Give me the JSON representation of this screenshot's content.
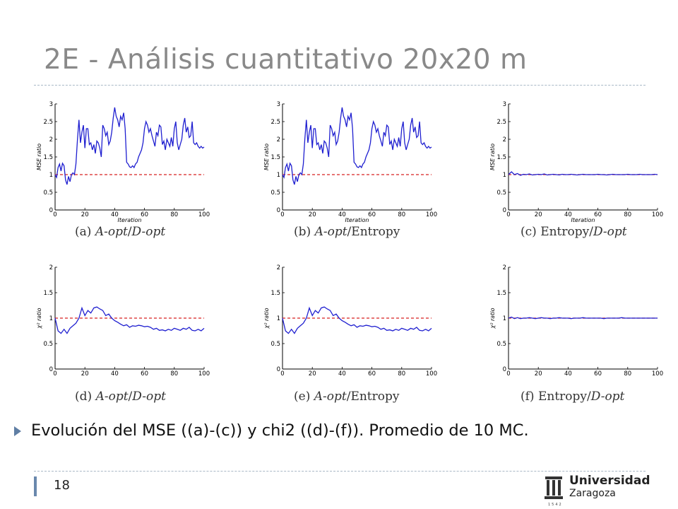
{
  "slide": {
    "title": "2E - Análisis cuantitativo 20x20 m",
    "bullet": "Evolución del MSE ((a)-(c)) y chi2 ((d)-(f)). Promedio de 10 MC.",
    "page_number": "18",
    "logo": {
      "line1": "Universidad",
      "line2": "Zaragoza",
      "year": "1542"
    }
  },
  "colors": {
    "series": "#1f1fd0",
    "reference": "#d62020",
    "title": "#898989",
    "bullet": "#5f7ea4"
  },
  "chart_data": [
    {
      "type": "line",
      "panel": "a",
      "caption": {
        "label": "(a)",
        "part1": "A-opt",
        "sep": "/",
        "part2": "D-opt",
        "italic1": true,
        "italic2": true
      },
      "xlabel": "Iteration",
      "ylabel": "MSE ratio",
      "xlim": [
        0,
        100
      ],
      "ylim": [
        0,
        3
      ],
      "xticks": [
        "0",
        "20",
        "40",
        "60",
        "80",
        "100"
      ],
      "yticks": [
        "0",
        "0.5",
        "1",
        "1.5",
        "2",
        "2.5",
        "3"
      ],
      "reference": 1,
      "series": [
        {
          "x": [
            0,
            1,
            2,
            3,
            4,
            5,
            6,
            7,
            8,
            9,
            10,
            11,
            12,
            13,
            14,
            15,
            16,
            17,
            18,
            19,
            20,
            21,
            22,
            23,
            24,
            25,
            26,
            27,
            28,
            29,
            30,
            31,
            32,
            33,
            34,
            35,
            36,
            37,
            38,
            39,
            40,
            41,
            42,
            43,
            44,
            45,
            46,
            47,
            48,
            49,
            50,
            51,
            52,
            53,
            54,
            55,
            56,
            57,
            58,
            59,
            60,
            61,
            62,
            63,
            64,
            65,
            66,
            67,
            68,
            69,
            70,
            71,
            72,
            73,
            74,
            75,
            76,
            77,
            78,
            79,
            80,
            81,
            82,
            83,
            84,
            85,
            86,
            87,
            88,
            89,
            90,
            91,
            92,
            93,
            94,
            95,
            96,
            97,
            98,
            99,
            100
          ],
          "y": [
            1.0,
            0.92,
            1.2,
            1.3,
            1.1,
            1.32,
            1.25,
            0.85,
            0.72,
            0.95,
            0.8,
            1.0,
            1.05,
            1.0,
            1.3,
            2.0,
            2.55,
            1.9,
            2.2,
            2.4,
            1.75,
            2.3,
            2.3,
            1.85,
            1.9,
            1.7,
            1.85,
            1.6,
            1.95,
            1.9,
            1.75,
            1.5,
            2.4,
            2.3,
            2.1,
            2.2,
            1.85,
            1.95,
            2.2,
            2.6,
            2.9,
            2.65,
            2.55,
            2.35,
            2.65,
            2.55,
            2.75,
            2.3,
            1.35,
            1.3,
            1.22,
            1.2,
            1.25,
            1.2,
            1.3,
            1.35,
            1.5,
            1.6,
            1.7,
            1.9,
            2.3,
            2.5,
            2.4,
            2.2,
            2.3,
            2.1,
            1.95,
            1.8,
            2.2,
            2.1,
            2.4,
            2.35,
            1.85,
            1.95,
            1.7,
            2.0,
            1.9,
            1.8,
            2.05,
            1.8,
            2.3,
            2.5,
            1.9,
            1.7,
            1.85,
            2.0,
            2.4,
            2.6,
            2.2,
            2.35,
            2.05,
            2.1,
            2.5,
            1.9,
            1.85,
            1.9,
            1.8,
            1.75,
            1.8,
            1.75,
            1.78
          ]
        }
      ]
    },
    {
      "type": "line",
      "panel": "b",
      "caption": {
        "label": "(b)",
        "part1": "A-opt",
        "sep": "/",
        "part2": "Entropy",
        "italic1": true,
        "italic2": false
      },
      "xlabel": "Iteration",
      "ylabel": "MSE ratio",
      "xlim": [
        0,
        100
      ],
      "ylim": [
        0,
        3
      ],
      "xticks": [
        "0",
        "20",
        "40",
        "60",
        "80",
        "100"
      ],
      "yticks": [
        "0",
        "0.5",
        "1",
        "1.5",
        "2",
        "2.5",
        "3"
      ],
      "reference": 1,
      "series": [
        {
          "x": [
            0,
            1,
            2,
            3,
            4,
            5,
            6,
            7,
            8,
            9,
            10,
            11,
            12,
            13,
            14,
            15,
            16,
            17,
            18,
            19,
            20,
            21,
            22,
            23,
            24,
            25,
            26,
            27,
            28,
            29,
            30,
            31,
            32,
            33,
            34,
            35,
            36,
            37,
            38,
            39,
            40,
            41,
            42,
            43,
            44,
            45,
            46,
            47,
            48,
            49,
            50,
            51,
            52,
            53,
            54,
            55,
            56,
            57,
            58,
            59,
            60,
            61,
            62,
            63,
            64,
            65,
            66,
            67,
            68,
            69,
            70,
            71,
            72,
            73,
            74,
            75,
            76,
            77,
            78,
            79,
            80,
            81,
            82,
            83,
            84,
            85,
            86,
            87,
            88,
            89,
            90,
            91,
            92,
            93,
            94,
            95,
            96,
            97,
            98,
            99,
            100
          ],
          "y": [
            1.0,
            0.92,
            1.2,
            1.3,
            1.1,
            1.32,
            1.25,
            0.85,
            0.72,
            0.95,
            0.8,
            1.0,
            1.05,
            1.0,
            1.3,
            2.0,
            2.55,
            1.9,
            2.2,
            2.4,
            1.75,
            2.3,
            2.3,
            1.85,
            1.9,
            1.7,
            1.85,
            1.6,
            1.95,
            1.9,
            1.75,
            1.5,
            2.4,
            2.3,
            2.1,
            2.2,
            1.85,
            1.95,
            2.2,
            2.6,
            2.9,
            2.65,
            2.55,
            2.35,
            2.65,
            2.55,
            2.75,
            2.3,
            1.35,
            1.3,
            1.22,
            1.2,
            1.25,
            1.2,
            1.3,
            1.35,
            1.5,
            1.6,
            1.7,
            1.9,
            2.3,
            2.5,
            2.4,
            2.2,
            2.3,
            2.1,
            1.95,
            1.8,
            2.2,
            2.1,
            2.4,
            2.35,
            1.85,
            1.95,
            1.7,
            2.0,
            1.9,
            1.8,
            2.05,
            1.8,
            2.3,
            2.5,
            1.9,
            1.7,
            1.85,
            2.0,
            2.4,
            2.6,
            2.2,
            2.35,
            2.05,
            2.1,
            2.5,
            1.9,
            1.85,
            1.9,
            1.8,
            1.75,
            1.8,
            1.75,
            1.78
          ]
        }
      ]
    },
    {
      "type": "line",
      "panel": "c",
      "caption": {
        "label": "(c)",
        "part1": "Entropy",
        "sep": "/",
        "part2": "D-opt",
        "italic1": false,
        "italic2": true
      },
      "xlabel": "Iteration",
      "ylabel": "MSE ratio",
      "xlim": [
        0,
        100
      ],
      "ylim": [
        0,
        3
      ],
      "xticks": [
        "0",
        "20",
        "40",
        "60",
        "80",
        "100"
      ],
      "yticks": [
        "0",
        "0.5",
        "1",
        "1.5",
        "2",
        "2.5",
        "3"
      ],
      "reference": 1,
      "series": [
        {
          "x": [
            0,
            2,
            4,
            6,
            8,
            10,
            12,
            14,
            16,
            18,
            20,
            22,
            24,
            26,
            28,
            30,
            32,
            34,
            36,
            38,
            40,
            42,
            44,
            46,
            48,
            50,
            52,
            54,
            56,
            58,
            60,
            62,
            64,
            66,
            68,
            70,
            72,
            74,
            76,
            78,
            80,
            82,
            84,
            86,
            88,
            90,
            92,
            94,
            96,
            98,
            100
          ],
          "y": [
            1.0,
            1.08,
            1.0,
            1.03,
            0.98,
            1.01,
            1.0,
            1.02,
            0.99,
            1.0,
            1.01,
            1.0,
            1.02,
            0.99,
            1.0,
            1.01,
            1.0,
            0.99,
            1.01,
            1.0,
            1.0,
            1.01,
            1.0,
            0.99,
            1.0,
            1.01,
            1.0,
            1.0,
            1.0,
            1.0,
            1.01,
            1.0,
            1.0,
            0.99,
            1.0,
            1.01,
            1.0,
            1.0,
            1.0,
            1.0,
            1.01,
            1.0,
            1.0,
            1.0,
            1.01,
            1.0,
            1.0,
            1.0,
            1.0,
            1.01,
            1.0
          ]
        }
      ]
    },
    {
      "type": "line",
      "panel": "d",
      "caption": {
        "label": "(d)",
        "part1": "A-opt",
        "sep": "/",
        "part2": "D-opt",
        "italic1": true,
        "italic2": true
      },
      "xlabel": "",
      "ylabel": "χ² ratio",
      "xlim": [
        0,
        100
      ],
      "ylim": [
        0,
        2
      ],
      "xticks": [
        "0",
        "20",
        "40",
        "60",
        "80",
        "100"
      ],
      "yticks": [
        "0",
        "0.5",
        "1",
        "1.5",
        "2"
      ],
      "reference": 1,
      "series": [
        {
          "x": [
            0,
            2,
            4,
            6,
            8,
            10,
            12,
            14,
            16,
            18,
            20,
            22,
            24,
            26,
            28,
            30,
            32,
            34,
            36,
            38,
            40,
            42,
            44,
            46,
            48,
            50,
            52,
            54,
            56,
            58,
            60,
            62,
            64,
            66,
            68,
            70,
            72,
            74,
            76,
            78,
            80,
            82,
            84,
            86,
            88,
            90,
            92,
            94,
            96,
            98,
            100
          ],
          "y": [
            1.0,
            0.75,
            0.7,
            0.78,
            0.7,
            0.8,
            0.85,
            0.9,
            1.0,
            1.2,
            1.05,
            1.15,
            1.1,
            1.2,
            1.22,
            1.18,
            1.15,
            1.05,
            1.08,
            1.0,
            0.95,
            0.92,
            0.88,
            0.85,
            0.87,
            0.82,
            0.85,
            0.84,
            0.86,
            0.85,
            0.83,
            0.84,
            0.82,
            0.78,
            0.8,
            0.76,
            0.77,
            0.75,
            0.78,
            0.76,
            0.8,
            0.78,
            0.76,
            0.8,
            0.78,
            0.82,
            0.76,
            0.75,
            0.78,
            0.75,
            0.8
          ]
        }
      ]
    },
    {
      "type": "line",
      "panel": "e",
      "caption": {
        "label": "(e)",
        "part1": "A-opt",
        "sep": "/",
        "part2": "Entropy",
        "italic1": true,
        "italic2": false
      },
      "xlabel": "",
      "ylabel": "χ² ratio",
      "xlim": [
        0,
        100
      ],
      "ylim": [
        0,
        2
      ],
      "xticks": [
        "0",
        "20",
        "40",
        "60",
        "80",
        "100"
      ],
      "yticks": [
        "0",
        "0.5",
        "1",
        "1.5",
        "2"
      ],
      "reference": 1,
      "series": [
        {
          "x": [
            0,
            2,
            4,
            6,
            8,
            10,
            12,
            14,
            16,
            18,
            20,
            22,
            24,
            26,
            28,
            30,
            32,
            34,
            36,
            38,
            40,
            42,
            44,
            46,
            48,
            50,
            52,
            54,
            56,
            58,
            60,
            62,
            64,
            66,
            68,
            70,
            72,
            74,
            76,
            78,
            80,
            82,
            84,
            86,
            88,
            90,
            92,
            94,
            96,
            98,
            100
          ],
          "y": [
            1.0,
            0.75,
            0.7,
            0.78,
            0.7,
            0.8,
            0.85,
            0.9,
            1.0,
            1.2,
            1.05,
            1.15,
            1.1,
            1.2,
            1.22,
            1.18,
            1.15,
            1.05,
            1.08,
            1.0,
            0.95,
            0.92,
            0.88,
            0.85,
            0.87,
            0.82,
            0.85,
            0.84,
            0.86,
            0.85,
            0.83,
            0.84,
            0.82,
            0.78,
            0.8,
            0.76,
            0.77,
            0.75,
            0.78,
            0.76,
            0.8,
            0.78,
            0.76,
            0.8,
            0.78,
            0.82,
            0.76,
            0.75,
            0.78,
            0.75,
            0.8
          ]
        }
      ]
    },
    {
      "type": "line",
      "panel": "f",
      "caption": {
        "label": "(f)",
        "part1": "Entropy",
        "sep": "/",
        "part2": "D-opt",
        "italic1": false,
        "italic2": true
      },
      "xlabel": "",
      "ylabel": "χ² ratio",
      "xlim": [
        0,
        100
      ],
      "ylim": [
        0,
        2
      ],
      "xticks": [
        "0",
        "20",
        "40",
        "60",
        "80",
        "100"
      ],
      "yticks": [
        "0",
        "0.5",
        "1",
        "1.5",
        "2"
      ],
      "reference": 1,
      "series": [
        {
          "x": [
            0,
            2,
            4,
            6,
            8,
            10,
            12,
            14,
            16,
            18,
            20,
            22,
            24,
            26,
            28,
            30,
            32,
            34,
            36,
            38,
            40,
            42,
            44,
            46,
            48,
            50,
            52,
            54,
            56,
            58,
            60,
            62,
            64,
            66,
            68,
            70,
            72,
            74,
            76,
            78,
            80,
            82,
            84,
            86,
            88,
            90,
            92,
            94,
            96,
            98,
            100
          ],
          "y": [
            1.0,
            1.02,
            0.99,
            1.01,
            0.99,
            1.0,
            1.0,
            1.01,
            1.0,
            0.99,
            1.0,
            1.01,
            1.0,
            1.0,
            0.99,
            1.0,
            1.0,
            1.01,
            1.0,
            1.0,
            1.0,
            0.99,
            1.0,
            1.0,
            1.0,
            1.01,
            1.0,
            1.0,
            1.0,
            1.0,
            1.0,
            1.0,
            0.99,
            1.0,
            1.0,
            1.0,
            1.0,
            1.0,
            1.01,
            1.0,
            1.0,
            1.0,
            1.0,
            1.0,
            1.0,
            1.0,
            1.0,
            1.0,
            1.0,
            1.0,
            1.0
          ]
        }
      ]
    }
  ]
}
